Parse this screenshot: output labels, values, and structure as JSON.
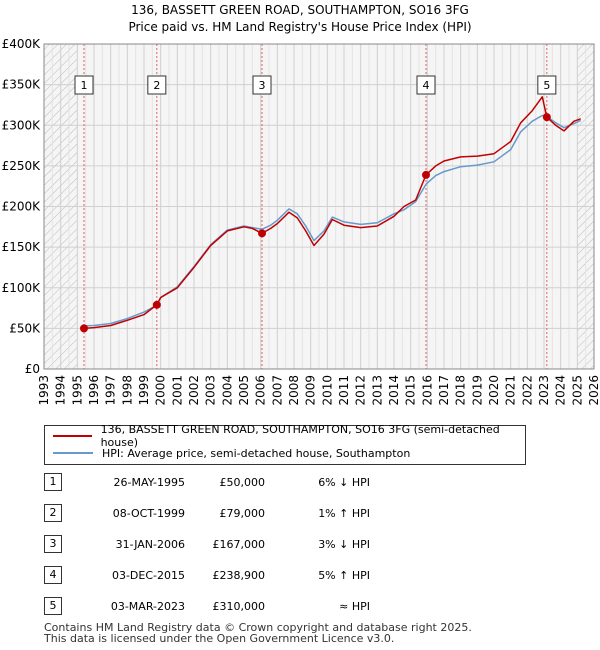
{
  "chart_data": {
    "type": "line",
    "title": "136, BASSETT GREEN ROAD, SOUTHAMPTON, SO16 3FG",
    "subtitle": "Price paid vs. HM Land Registry's House Price Index (HPI)",
    "xlim": [
      1993,
      2026
    ],
    "ylim": [
      0,
      400000
    ],
    "x_ticks": [
      "1993",
      "1994",
      "1995",
      "1996",
      "1997",
      "1998",
      "1999",
      "2000",
      "2001",
      "2002",
      "2003",
      "2004",
      "2005",
      "2006",
      "2007",
      "2008",
      "2009",
      "2010",
      "2011",
      "2012",
      "2013",
      "2014",
      "2015",
      "2016",
      "2017",
      "2018",
      "2019",
      "2020",
      "2021",
      "2022",
      "2023",
      "2024",
      "2025",
      "2026"
    ],
    "y_ticks": [
      {
        "value": 0,
        "label": "£0"
      },
      {
        "value": 50000,
        "label": "£50K"
      },
      {
        "value": 100000,
        "label": "£100K"
      },
      {
        "value": 150000,
        "label": "£150K"
      },
      {
        "value": 200000,
        "label": "£200K"
      },
      {
        "value": 250000,
        "label": "£250K"
      },
      {
        "value": 300000,
        "label": "£300K"
      },
      {
        "value": 350000,
        "label": "£350K"
      },
      {
        "value": 400000,
        "label": "£400K"
      }
    ],
    "hatch_before": 1995.0,
    "hatch_after": 2025.0,
    "series": [
      {
        "name": "136, BASSETT GREEN ROAD, SOUTHAMPTON, SO16 3FG (semi-detached house)",
        "color": "#c00000",
        "points": [
          [
            1995.4,
            50000
          ],
          [
            1996,
            51000
          ],
          [
            1997,
            53500
          ],
          [
            1998,
            60000
          ],
          [
            1999,
            67000
          ],
          [
            1999.77,
            79000
          ],
          [
            2000,
            88000
          ],
          [
            2001,
            100000
          ],
          [
            2002,
            125000
          ],
          [
            2003,
            152000
          ],
          [
            2004,
            170000
          ],
          [
            2005,
            175000
          ],
          [
            2005.5,
            173000
          ],
          [
            2006.08,
            167000
          ],
          [
            2006.6,
            173000
          ],
          [
            2007,
            179000
          ],
          [
            2007.7,
            193000
          ],
          [
            2008.2,
            186000
          ],
          [
            2008.7,
            170000
          ],
          [
            2009.2,
            152000
          ],
          [
            2009.8,
            166000
          ],
          [
            2010.3,
            184000
          ],
          [
            2011,
            177000
          ],
          [
            2012,
            174000
          ],
          [
            2013,
            176000
          ],
          [
            2014,
            188000
          ],
          [
            2014.6,
            200000
          ],
          [
            2015.3,
            208000
          ],
          [
            2015.92,
            238900
          ],
          [
            2016.5,
            250000
          ],
          [
            2017,
            256000
          ],
          [
            2018,
            261000
          ],
          [
            2019,
            262000
          ],
          [
            2020,
            265000
          ],
          [
            2021,
            280000
          ],
          [
            2021.6,
            303000
          ],
          [
            2022.3,
            318000
          ],
          [
            2022.9,
            335000
          ],
          [
            2023.17,
            310000
          ],
          [
            2023.7,
            300000
          ],
          [
            2024.2,
            293000
          ],
          [
            2024.8,
            305000
          ],
          [
            2025.2,
            308000
          ]
        ]
      },
      {
        "name": "HPI: Average price, semi-detached house, Southampton",
        "color": "#6699cc",
        "points": [
          [
            1995.4,
            53000
          ],
          [
            1996,
            53500
          ],
          [
            1997,
            56000
          ],
          [
            1998,
            62000
          ],
          [
            1999,
            70000
          ],
          [
            1999.77,
            78500
          ],
          [
            2000,
            88000
          ],
          [
            2001,
            101000
          ],
          [
            2002,
            126000
          ],
          [
            2003,
            153000
          ],
          [
            2004,
            171000
          ],
          [
            2005,
            176000
          ],
          [
            2005.5,
            174000
          ],
          [
            2006.08,
            172000
          ],
          [
            2006.6,
            177000
          ],
          [
            2007,
            183000
          ],
          [
            2007.7,
            197000
          ],
          [
            2008.2,
            191000
          ],
          [
            2008.7,
            176000
          ],
          [
            2009.2,
            158000
          ],
          [
            2009.8,
            170000
          ],
          [
            2010.3,
            187000
          ],
          [
            2011,
            181000
          ],
          [
            2012,
            178000
          ],
          [
            2013,
            180000
          ],
          [
            2014,
            191000
          ],
          [
            2014.6,
            196000
          ],
          [
            2015.3,
            206000
          ],
          [
            2015.92,
            227500
          ],
          [
            2016.5,
            238000
          ],
          [
            2017,
            243000
          ],
          [
            2018,
            249000
          ],
          [
            2019,
            251000
          ],
          [
            2020,
            255000
          ],
          [
            2021,
            270000
          ],
          [
            2021.6,
            292000
          ],
          [
            2022.3,
            305000
          ],
          [
            2022.9,
            312000
          ],
          [
            2023.17,
            311000
          ],
          [
            2023.7,
            303000
          ],
          [
            2024.2,
            297000
          ],
          [
            2024.8,
            302000
          ],
          [
            2025.2,
            306000
          ]
        ]
      }
    ],
    "sales": [
      {
        "n": "1",
        "x": 1995.4,
        "y": 50000
      },
      {
        "n": "2",
        "x": 1999.77,
        "y": 79000
      },
      {
        "n": "3",
        "x": 2006.08,
        "y": 167000
      },
      {
        "n": "4",
        "x": 2015.92,
        "y": 238900
      },
      {
        "n": "5",
        "x": 2023.17,
        "y": 310000
      }
    ]
  },
  "legend": {
    "property": "136, BASSETT GREEN ROAD, SOUTHAMPTON, SO16 3FG (semi-detached house)",
    "hpi": "HPI: Average price, semi-detached house, Southampton"
  },
  "transactions": [
    {
      "n": "1",
      "date": "26-MAY-1995",
      "price": "£50,000",
      "hpi": "6% ↓ HPI"
    },
    {
      "n": "2",
      "date": "08-OCT-1999",
      "price": "£79,000",
      "hpi": "1% ↑ HPI"
    },
    {
      "n": "3",
      "date": "31-JAN-2006",
      "price": "£167,000",
      "hpi": "3% ↓ HPI"
    },
    {
      "n": "4",
      "date": "03-DEC-2015",
      "price": "£238,900",
      "hpi": "5% ↑ HPI"
    },
    {
      "n": "5",
      "date": "03-MAR-2023",
      "price": "£310,000",
      "hpi": "≈ HPI"
    }
  ],
  "footer": {
    "line1": "Contains HM Land Registry data © Crown copyright and database right 2025.",
    "line2": "This data is licensed under the Open Government Licence v3.0."
  }
}
